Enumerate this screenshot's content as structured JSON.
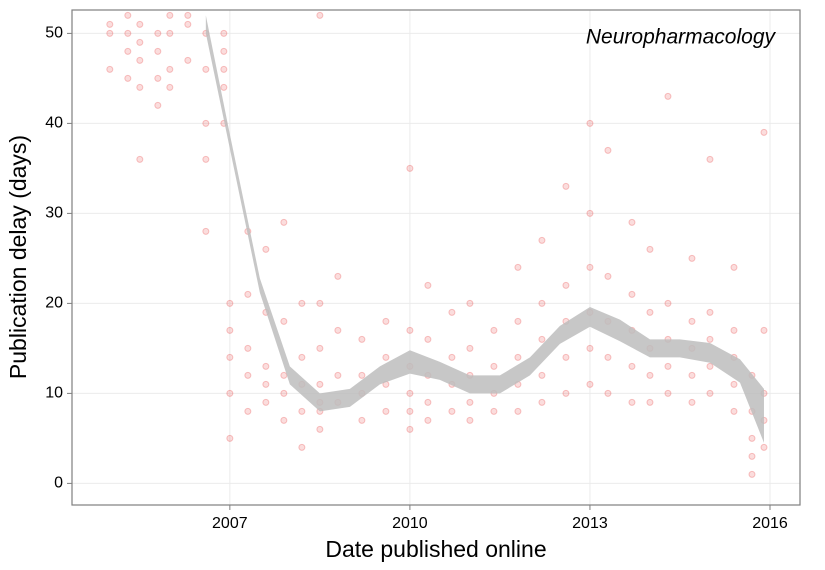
{
  "chart_data": {
    "type": "scatter",
    "annotation": "Neuropharmacology",
    "xlabel": "Date published online",
    "ylabel": "Publication delay (days)",
    "xlim": [
      2004.37,
      2016.5
    ],
    "ylim": [
      -2.4,
      52.6
    ],
    "xticks": [
      2007,
      2010,
      2013,
      2016
    ],
    "yticks": [
      0,
      10,
      20,
      30,
      40,
      50
    ],
    "grid": true,
    "color": "#e41a1c",
    "x": [
      2005.0,
      2005.0,
      2005.0,
      2005.3,
      2005.3,
      2005.3,
      2005.3,
      2005.5,
      2005.5,
      2005.5,
      2005.5,
      2005.5,
      2005.8,
      2005.8,
      2005.8,
      2005.8,
      2006.0,
      2006.0,
      2006.0,
      2006.0,
      2006.3,
      2006.3,
      2006.3,
      2006.6,
      2006.6,
      2006.6,
      2006.6,
      2006.6,
      2006.9,
      2006.9,
      2006.9,
      2006.9,
      2006.9,
      2007.0,
      2007.0,
      2007.0,
      2007.0,
      2007.0,
      2007.3,
      2007.3,
      2007.3,
      2007.3,
      2007.3,
      2007.6,
      2007.6,
      2007.6,
      2007.6,
      2007.6,
      2007.9,
      2007.9,
      2007.9,
      2007.9,
      2007.9,
      2008.2,
      2008.2,
      2008.2,
      2008.2,
      2008.2,
      2008.5,
      2008.5,
      2008.5,
      2008.5,
      2008.5,
      2008.5,
      2008.5,
      2008.8,
      2008.8,
      2008.8,
      2008.8,
      2009.2,
      2009.2,
      2009.2,
      2009.2,
      2009.6,
      2009.6,
      2009.6,
      2009.6,
      2010.0,
      2010.0,
      2010.0,
      2010.0,
      2010.0,
      2010.0,
      2010.3,
      2010.3,
      2010.3,
      2010.3,
      2010.3,
      2010.7,
      2010.7,
      2010.7,
      2010.7,
      2011.0,
      2011.0,
      2011.0,
      2011.0,
      2011.0,
      2011.4,
      2011.4,
      2011.4,
      2011.4,
      2011.8,
      2011.8,
      2011.8,
      2011.8,
      2011.8,
      2012.2,
      2012.2,
      2012.2,
      2012.2,
      2012.2,
      2012.6,
      2012.6,
      2012.6,
      2012.6,
      2012.6,
      2013.0,
      2013.0,
      2013.0,
      2013.0,
      2013.0,
      2013.0,
      2013.3,
      2013.3,
      2013.3,
      2013.3,
      2013.3,
      2013.7,
      2013.7,
      2013.7,
      2013.7,
      2013.7,
      2014.0,
      2014.0,
      2014.0,
      2014.0,
      2014.0,
      2014.3,
      2014.3,
      2014.3,
      2014.3,
      2014.3,
      2014.7,
      2014.7,
      2014.7,
      2014.7,
      2014.7,
      2015.0,
      2015.0,
      2015.0,
      2015.0,
      2015.0,
      2015.4,
      2015.4,
      2015.4,
      2015.4,
      2015.4,
      2015.7,
      2015.7,
      2015.7,
      2015.7,
      2015.7,
      2015.9,
      2015.9,
      2015.9,
      2015.9,
      2015.9
    ],
    "values": [
      46,
      50,
      51,
      45,
      48,
      50,
      52,
      44,
      47,
      49,
      51,
      36,
      42,
      45,
      48,
      50,
      46,
      50,
      52,
      44,
      47,
      51,
      52,
      40,
      46,
      50,
      36,
      28,
      40,
      44,
      48,
      46,
      50,
      5,
      10,
      14,
      17,
      20,
      8,
      12,
      15,
      21,
      28,
      9,
      11,
      13,
      19,
      26,
      7,
      10,
      12,
      18,
      29,
      8,
      11,
      14,
      20,
      4,
      6,
      8,
      9,
      11,
      15,
      20,
      52,
      9,
      12,
      17,
      23,
      7,
      10,
      12,
      16,
      8,
      11,
      14,
      18,
      6,
      8,
      10,
      13,
      17,
      35,
      7,
      9,
      12,
      16,
      22,
      8,
      11,
      14,
      19,
      7,
      9,
      12,
      15,
      20,
      8,
      10,
      13,
      17,
      8,
      11,
      14,
      18,
      24,
      9,
      12,
      16,
      20,
      27,
      10,
      14,
      18,
      22,
      33,
      11,
      15,
      19,
      24,
      30,
      40,
      10,
      14,
      18,
      23,
      37,
      9,
      13,
      17,
      21,
      29,
      9,
      12,
      15,
      19,
      26,
      10,
      13,
      16,
      20,
      43,
      9,
      12,
      15,
      18,
      25,
      10,
      13,
      16,
      19,
      36,
      8,
      11,
      14,
      17,
      24,
      1,
      3,
      5,
      8,
      12,
      4,
      7,
      10,
      17,
      39
    ],
    "smooth": {
      "color": "#bdbdbd",
      "x": [
        2006.6,
        2007,
        2007.5,
        2008,
        2008.5,
        2009,
        2009.5,
        2010,
        2010.5,
        2011,
        2011.5,
        2012,
        2012.5,
        2013,
        2013.5,
        2014,
        2014.5,
        2015,
        2015.5,
        2015.9
      ],
      "upper": [
        52,
        38.8,
        22.8,
        13,
        10,
        10.5,
        13,
        14.8,
        13.5,
        12,
        12,
        14,
        17.5,
        19.6,
        18.2,
        16,
        16,
        15.6,
        13.8,
        10.5
      ],
      "lower": [
        50,
        37.2,
        21.2,
        11,
        8,
        8.5,
        11,
        12.2,
        11.5,
        10,
        10,
        12,
        15.5,
        17.4,
        15.8,
        14,
        14,
        13.4,
        11.2,
        4.5
      ]
    }
  }
}
